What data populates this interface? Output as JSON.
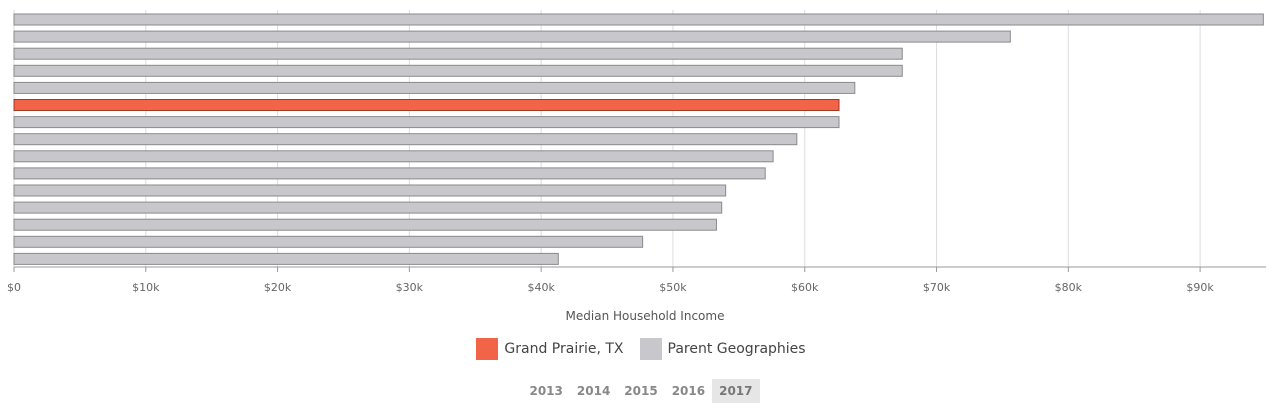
{
  "chart_data": {
    "type": "bar",
    "orientation": "horizontal",
    "title": "",
    "xlabel": "Median Household Income",
    "ylabel": "",
    "xlim": [
      0,
      95000
    ],
    "x_ticks": [
      0,
      10000,
      20000,
      30000,
      40000,
      50000,
      60000,
      70000,
      80000,
      90000
    ],
    "x_tick_labels": [
      "$0",
      "$10k",
      "$20k",
      "$30k",
      "$40k",
      "$50k",
      "$60k",
      "$70k",
      "$80k",
      "$90k"
    ],
    "grid": true,
    "highlight_index": 5,
    "values": [
      94800,
      75600,
      67400,
      67400,
      63800,
      62600,
      62600,
      59400,
      57600,
      57000,
      54000,
      53700,
      53300,
      47700,
      41300
    ],
    "colors": {
      "highlight": "#f26448",
      "highlight_border": "#a23a25",
      "other": "#c8c8cc",
      "other_border": "#8a8a8e",
      "grid": "#dddddd"
    }
  },
  "legend": [
    {
      "label": "Grand Prairie, TX",
      "color": "#f26448"
    },
    {
      "label": "Parent Geographies",
      "color": "#c8c8cc"
    }
  ],
  "years": [
    "2013",
    "2014",
    "2015",
    "2016",
    "2017"
  ],
  "selected_year": "2017"
}
